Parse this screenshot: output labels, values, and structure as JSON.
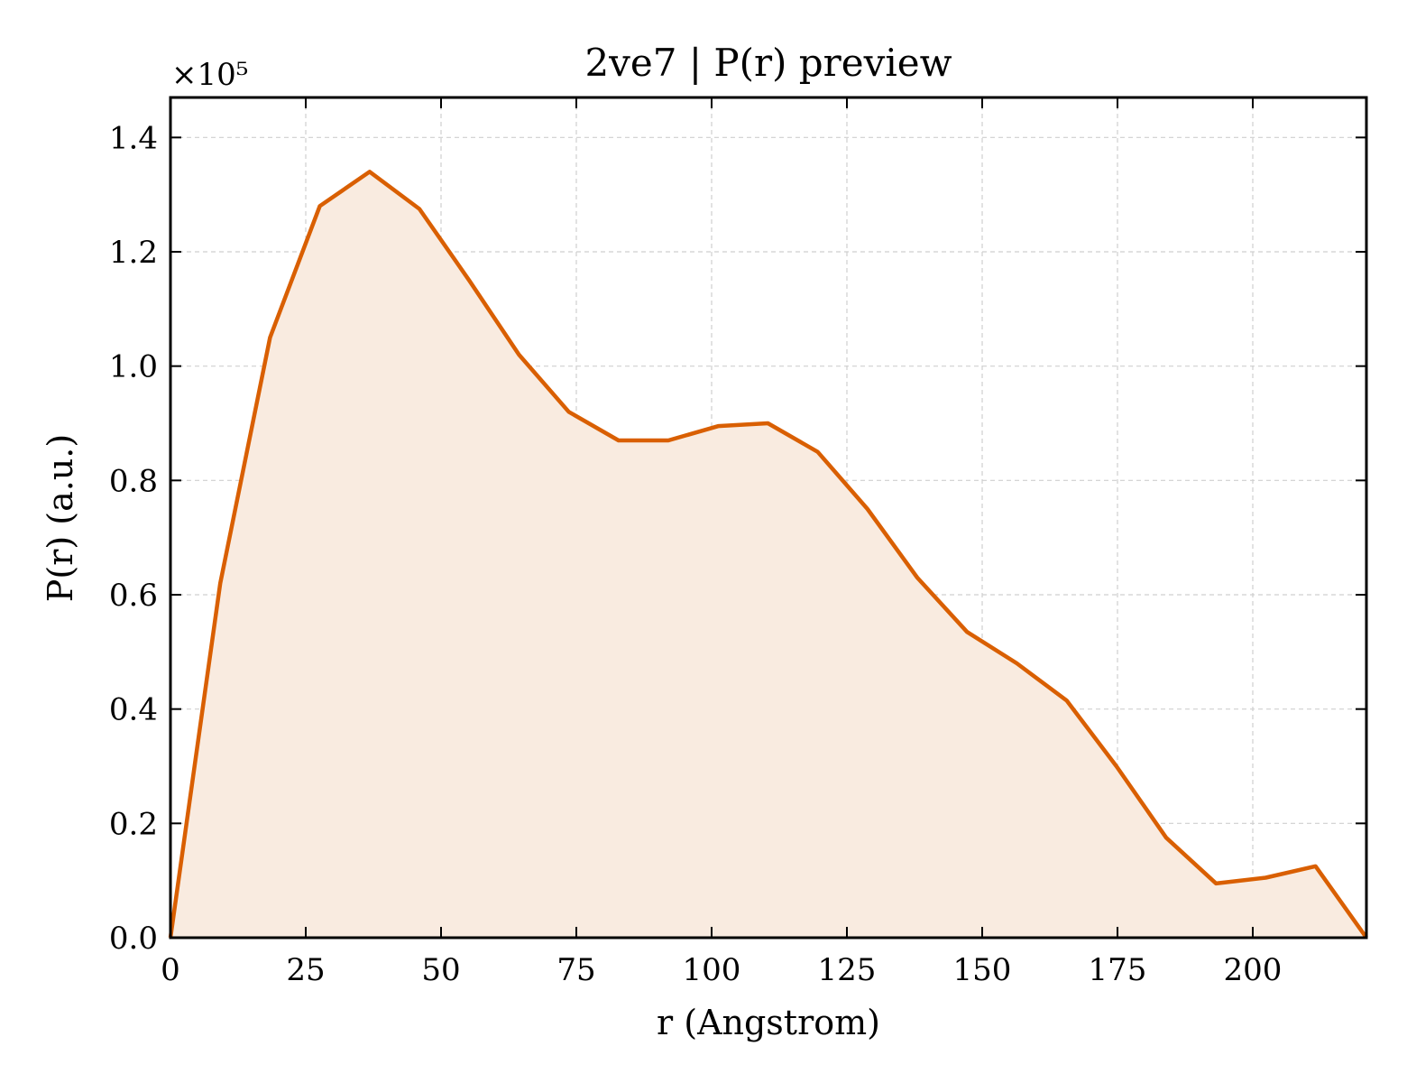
{
  "chart_data": {
    "type": "area",
    "title": "2ve7 | P(r) preview",
    "xlabel": "r (Angstrom)",
    "ylabel": "P(r) (a.u.)",
    "y_offset_label": "×10⁵",
    "y_scale": 100000,
    "xlim": [
      0,
      221
    ],
    "ylim": [
      0,
      147000
    ],
    "x_ticks": [
      0,
      25,
      50,
      75,
      100,
      125,
      150,
      175,
      200
    ],
    "x_tick_labels": [
      "0",
      "25",
      "50",
      "75",
      "100",
      "125",
      "150",
      "175",
      "200"
    ],
    "y_ticks": [
      0,
      20000,
      40000,
      60000,
      80000,
      100000,
      120000,
      140000
    ],
    "y_tick_labels": [
      "0.0",
      "0.2",
      "0.4",
      "0.6",
      "0.8",
      "1.0",
      "1.2",
      "1.4"
    ],
    "grid": true,
    "line_color": "#d95f02",
    "fill_color": "#f9ebe0",
    "series": [
      {
        "x": [
          0,
          9.2,
          18.4,
          27.6,
          36.8,
          46,
          55.2,
          64.4,
          73.6,
          82.8,
          92,
          101.2,
          110.4,
          119.6,
          128.8,
          138,
          147.2,
          156.4,
          165.6,
          174.8,
          184,
          193.2,
          202.4,
          211.6,
          221
        ],
        "y": [
          0,
          62000,
          105000,
          128000,
          134000,
          127500,
          115000,
          102000,
          92000,
          87000,
          87000,
          89500,
          90000,
          85000,
          75000,
          63000,
          53500,
          48000,
          41500,
          30000,
          17500,
          9500,
          10500,
          12500,
          0
        ]
      }
    ]
  }
}
